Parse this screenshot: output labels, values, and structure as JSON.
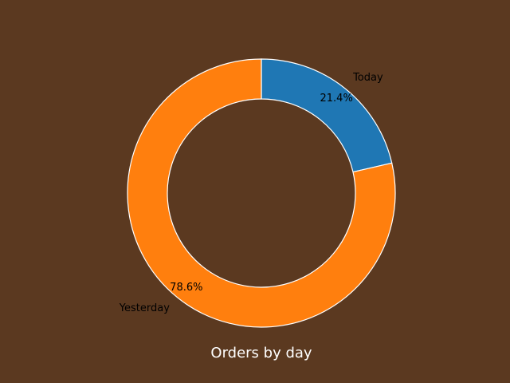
{
  "chart_data": {
    "type": "pie",
    "style": "donut",
    "title": "Orders by day",
    "slices": [
      {
        "label": "Today",
        "value": 21.4,
        "percent_label": "21.4%",
        "color": "#1f77b4"
      },
      {
        "label": "Yesterday",
        "value": 78.6,
        "percent_label": "78.6%",
        "color": "#ff7f0e"
      }
    ],
    "start_angle_deg": 90,
    "direction": "clockwise",
    "background_color": "#5b3920",
    "edge_color": "#ffffff",
    "title_color": "#ffffff"
  }
}
